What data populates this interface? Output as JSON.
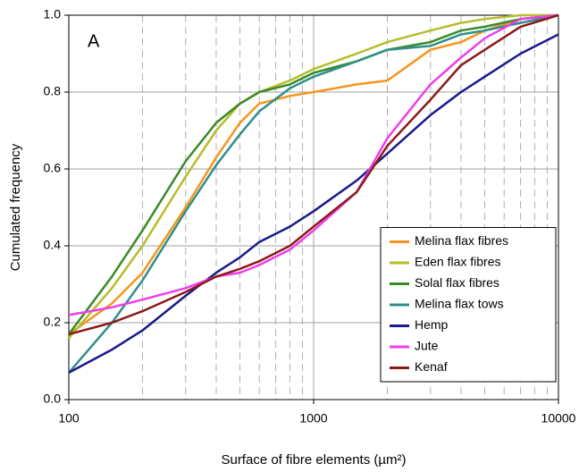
{
  "chart_data": {
    "type": "line",
    "annotation": "A",
    "xlabel": "Surface of fibre elements (µm²)",
    "ylabel": "Cumulated frequency",
    "x": [
      100,
      150,
      200,
      300,
      400,
      500,
      600,
      800,
      1000,
      1500,
      2000,
      3000,
      4000,
      5000,
      7000,
      10000
    ],
    "series": [
      {
        "name": "Melina flax fibres",
        "color": "#f7941d",
        "values": [
          0.17,
          0.25,
          0.33,
          0.5,
          0.63,
          0.72,
          0.77,
          0.79,
          0.8,
          0.82,
          0.83,
          0.91,
          0.93,
          0.96,
          0.99,
          1.0
        ]
      },
      {
        "name": "Eden flax fibres",
        "color": "#b5bd2a",
        "values": [
          0.16,
          0.29,
          0.4,
          0.58,
          0.7,
          0.77,
          0.8,
          0.83,
          0.86,
          0.9,
          0.93,
          0.96,
          0.98,
          0.99,
          1.0,
          1.0
        ]
      },
      {
        "name": "Solal flax fibres",
        "color": "#3a8a27",
        "values": [
          0.17,
          0.32,
          0.44,
          0.62,
          0.72,
          0.77,
          0.8,
          0.82,
          0.85,
          0.88,
          0.91,
          0.93,
          0.96,
          0.97,
          0.99,
          1.0
        ]
      },
      {
        "name": "Melina flax tows",
        "color": "#2f8f8a",
        "values": [
          0.07,
          0.2,
          0.31,
          0.49,
          0.61,
          0.69,
          0.75,
          0.81,
          0.84,
          0.88,
          0.91,
          0.92,
          0.95,
          0.96,
          0.98,
          1.0
        ]
      },
      {
        "name": "Hemp",
        "color": "#1a1a8c",
        "values": [
          0.07,
          0.13,
          0.18,
          0.27,
          0.33,
          0.37,
          0.41,
          0.45,
          0.49,
          0.57,
          0.64,
          0.74,
          0.8,
          0.84,
          0.9,
          0.95
        ]
      },
      {
        "name": "Jute",
        "color": "#ee3ded",
        "values": [
          0.22,
          0.24,
          0.26,
          0.29,
          0.32,
          0.33,
          0.35,
          0.39,
          0.44,
          0.54,
          0.68,
          0.82,
          0.89,
          0.94,
          0.99,
          1.0
        ]
      },
      {
        "name": "Kenaf",
        "color": "#8b1a1a",
        "values": [
          0.17,
          0.2,
          0.23,
          0.28,
          0.32,
          0.34,
          0.36,
          0.4,
          0.45,
          0.54,
          0.66,
          0.78,
          0.87,
          0.91,
          0.97,
          1.0
        ]
      }
    ],
    "xlim": [
      100,
      10000
    ],
    "xticks": [
      100,
      1000,
      10000
    ],
    "xscale": "log",
    "ylim": [
      0,
      1
    ],
    "yticks": [
      {
        "value": 0,
        "label": "0.0"
      },
      0.2,
      0.4,
      0.6,
      0.8,
      {
        "value": 1,
        "label": "1.0"
      }
    ],
    "grid": true,
    "minor_grid": true,
    "legend": "lower right"
  }
}
